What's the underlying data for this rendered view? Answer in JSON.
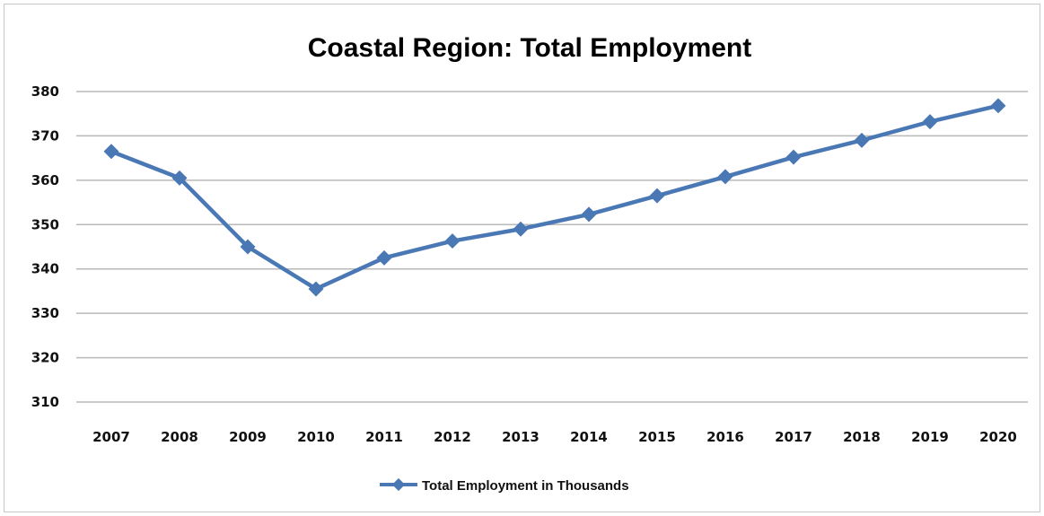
{
  "chart_data": {
    "type": "line",
    "title": "Coastal Region: Total Employment",
    "xlabel": "",
    "ylabel": "",
    "categories": [
      "2007",
      "2008",
      "2009",
      "2010",
      "2011",
      "2012",
      "2013",
      "2014",
      "2015",
      "2016",
      "2017",
      "2018",
      "2019",
      "2020"
    ],
    "series": [
      {
        "name": "Total Employment in Thousands",
        "values": [
          366.5,
          360.5,
          345.0,
          335.5,
          342.5,
          346.3,
          349.0,
          352.3,
          356.5,
          360.8,
          365.2,
          369.0,
          373.2,
          376.8
        ],
        "color": "#4a78b5",
        "marker": "diamond"
      }
    ],
    "ylim": [
      310,
      380
    ],
    "yticks": [
      "380",
      "370",
      "360",
      "350",
      "340",
      "330",
      "320",
      "310"
    ],
    "grid": true,
    "legend": "bottom-center"
  }
}
